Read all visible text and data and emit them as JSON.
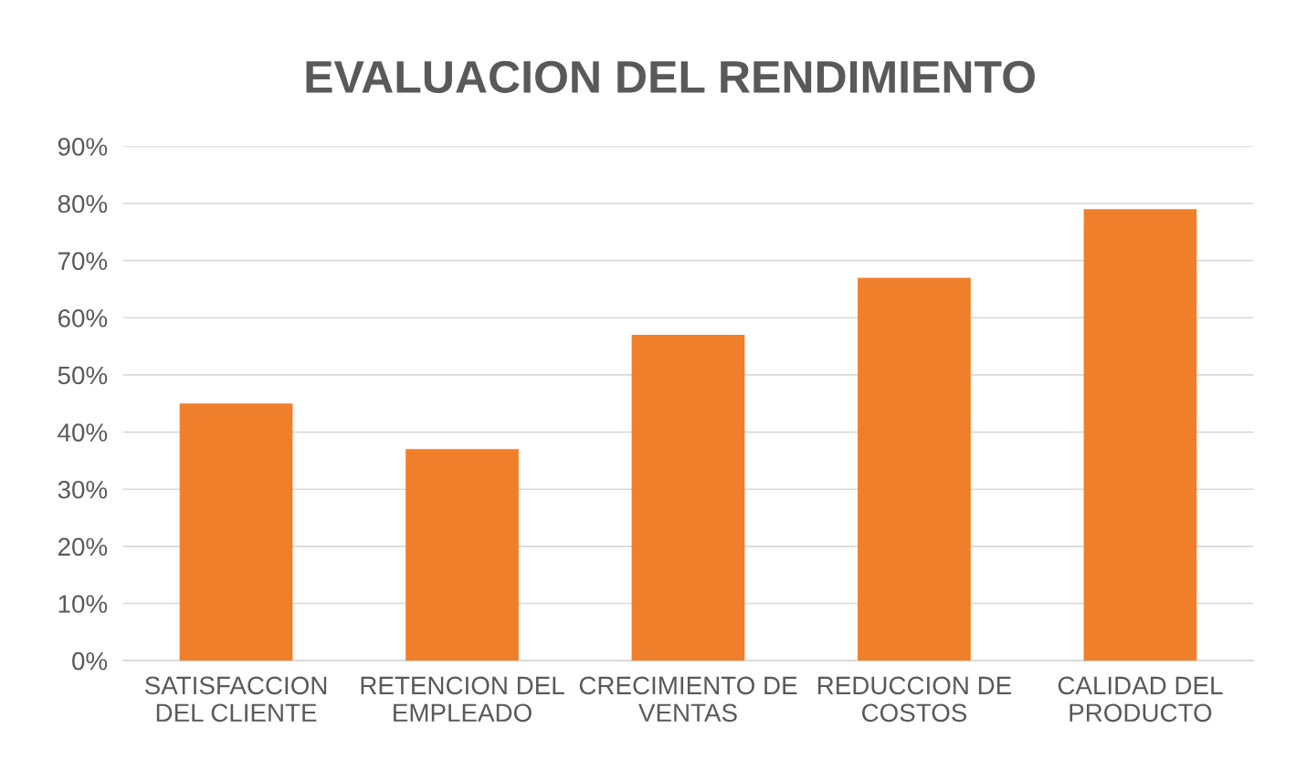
{
  "chart_data": {
    "type": "bar",
    "title": "EVALUACION DEL RENDIMIENTO",
    "categories": [
      "SATISFACCION\nDEL CLIENTE",
      "RETENCION DEL\nEMPLEADO",
      "CRECIMIENTO DE\nVENTAS",
      "REDUCCION DE\nCOSTOS",
      "CALIDAD DEL\nPRODUCTO"
    ],
    "values": [
      45,
      37,
      57,
      67,
      79
    ],
    "color": "#f07f2c",
    "ylim": [
      0,
      90
    ],
    "yticks": [
      {
        "value": 0,
        "label": "0%"
      },
      {
        "value": 10,
        "label": "10%"
      },
      {
        "value": 20,
        "label": "20%"
      },
      {
        "value": 30,
        "label": "30%"
      },
      {
        "value": 40,
        "label": "40%"
      },
      {
        "value": 50,
        "label": "50%"
      },
      {
        "value": 60,
        "label": "60%"
      },
      {
        "value": 70,
        "label": "70%"
      },
      {
        "value": 80,
        "label": "80%"
      },
      {
        "value": 90,
        "label": "90%"
      }
    ],
    "grid": "y"
  }
}
